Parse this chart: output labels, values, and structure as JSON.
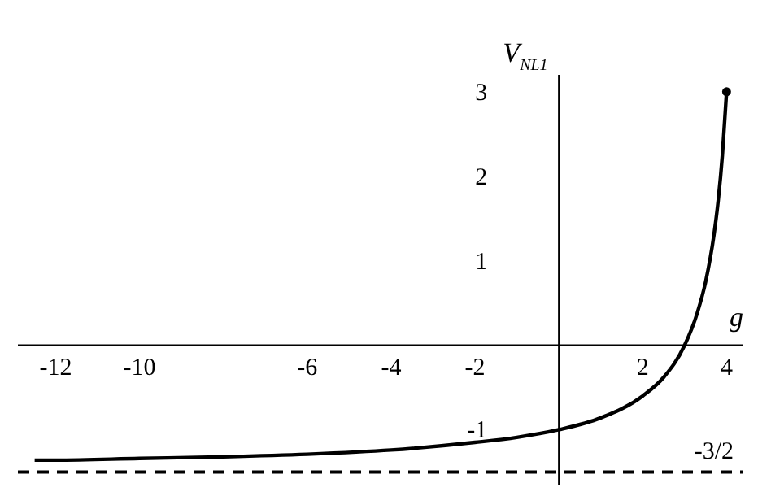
{
  "chart_data": {
    "type": "line",
    "xlabel": "g",
    "ylabel": "V$_{NL1}$",
    "xlim": [
      -12.9,
      4.4
    ],
    "ylim": [
      -1.65,
      3.2
    ],
    "xticks": [
      -12,
      -10,
      -6,
      -4,
      -2,
      2,
      4
    ],
    "yticks": [
      -1,
      1,
      2,
      3
    ],
    "series": [
      {
        "color": "#000000",
        "x": [
          -12.5,
          -12,
          -10,
          -8,
          -6,
          -4,
          -2,
          -1,
          0,
          1,
          2,
          2.5,
          3,
          3.3,
          3.5,
          3.7,
          3.8,
          3.9,
          4
        ],
        "values": [
          -1.36,
          -1.36,
          -1.34,
          -1.32,
          -1.29,
          -1.24,
          -1.15,
          -1.09,
          -1.0,
          -0.86,
          -0.6,
          -0.38,
          0.0,
          0.38,
          0.75,
          1.31,
          1.71,
          2.25,
          3.0
        ]
      },
      {
        "type": "scatter",
        "color": "#000000",
        "x": [
          4
        ],
        "values": [
          3
        ]
      }
    ],
    "ref_lines": [
      {
        "axis": "y",
        "value": -1.5,
        "color": "#000000",
        "line_style": "dashed"
      }
    ],
    "annotations": [
      "-3/2"
    ],
    "grid": false
  }
}
